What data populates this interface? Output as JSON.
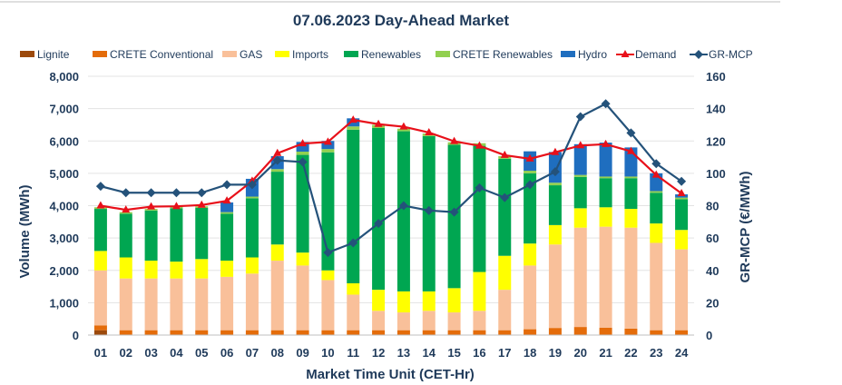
{
  "chart_data": {
    "type": "bar",
    "title": "07.06.2023  Day-Ahead Market",
    "xlabel": "Market Time Unit (CET-Hr)",
    "ylabel": "Volume (MWh)",
    "y2label": "GR-MCP (€/MWh)",
    "ylim": [
      0,
      8000
    ],
    "y2lim": [
      0,
      160
    ],
    "yticks": [
      "0",
      "1,000",
      "2,000",
      "3,000",
      "4,000",
      "5,000",
      "6,000",
      "7,000",
      "8,000"
    ],
    "y2ticks": [
      "0",
      "20",
      "40",
      "60",
      "80",
      "100",
      "120",
      "140",
      "160"
    ],
    "categories": [
      "01",
      "02",
      "03",
      "04",
      "05",
      "06",
      "07",
      "08",
      "09",
      "10",
      "11",
      "12",
      "13",
      "14",
      "15",
      "16",
      "17",
      "18",
      "19",
      "20",
      "21",
      "22",
      "23",
      "24"
    ],
    "legend": [
      "Lignite",
      "CRETE Conventional",
      "GAS",
      "Imports",
      "Renewables",
      "CRETE Renewables",
      "Hydro",
      "Demand",
      "GR-MCP"
    ],
    "series": [
      {
        "name": "Lignite",
        "kind": "bar",
        "color": "#9c4a0c",
        "values": [
          150,
          0,
          0,
          0,
          0,
          0,
          0,
          0,
          0,
          0,
          0,
          0,
          0,
          0,
          0,
          0,
          0,
          0,
          0,
          0,
          0,
          0,
          0,
          0
        ]
      },
      {
        "name": "CRETE Conventional",
        "kind": "bar",
        "color": "#e46c0a",
        "values": [
          150,
          150,
          150,
          150,
          150,
          150,
          150,
          150,
          150,
          150,
          150,
          150,
          150,
          150,
          150,
          150,
          150,
          180,
          220,
          250,
          230,
          200,
          150,
          150
        ]
      },
      {
        "name": "GAS",
        "kind": "bar",
        "color": "#f9c09a",
        "values": [
          1700,
          1600,
          1600,
          1600,
          1600,
          1650,
          1750,
          2150,
          2000,
          1550,
          1100,
          600,
          550,
          600,
          550,
          600,
          1250,
          1970,
          2580,
          3070,
          3120,
          3120,
          2700,
          2500
        ]
      },
      {
        "name": "Imports",
        "kind": "bar",
        "color": "#ffff00",
        "values": [
          600,
          650,
          550,
          520,
          600,
          500,
          500,
          500,
          400,
          300,
          350,
          650,
          650,
          600,
          750,
          1200,
          1050,
          680,
          600,
          600,
          600,
          580,
          600,
          600
        ]
      },
      {
        "name": "Renewables",
        "kind": "bar",
        "color": "#00a651",
        "values": [
          1300,
          1350,
          1550,
          1650,
          1580,
          1450,
          1830,
          2250,
          3020,
          3650,
          4750,
          5000,
          4950,
          4800,
          4430,
          3900,
          3000,
          2170,
          1230,
          970,
          900,
          950,
          950,
          950
        ]
      },
      {
        "name": "CRETE Renewables",
        "kind": "bar",
        "color": "#92d050",
        "values": [
          50,
          50,
          50,
          50,
          50,
          50,
          50,
          80,
          100,
          100,
          100,
          100,
          80,
          80,
          80,
          80,
          80,
          80,
          80,
          60,
          50,
          50,
          50,
          50
        ]
      },
      {
        "name": "Hydro",
        "kind": "bar",
        "color": "#1f6ebf",
        "values": [
          0,
          0,
          0,
          0,
          0,
          300,
          550,
          400,
          300,
          250,
          250,
          0,
          0,
          0,
          0,
          0,
          0,
          600,
          950,
          950,
          1050,
          900,
          550,
          100
        ]
      },
      {
        "name": "Demand",
        "kind": "line",
        "axis": "left",
        "color": "#e8101a",
        "values": [
          4000,
          3870,
          3970,
          3980,
          4020,
          4150,
          4760,
          5620,
          5920,
          5970,
          6650,
          6520,
          6440,
          6260,
          5990,
          5850,
          5560,
          5450,
          5650,
          5860,
          5900,
          5680,
          4950,
          4380
        ]
      },
      {
        "name": "GR-MCP",
        "kind": "line",
        "axis": "right",
        "color": "#24527a",
        "values": [
          92,
          88,
          88,
          88,
          88,
          93,
          93,
          108,
          107,
          51,
          57,
          69,
          80,
          77,
          76,
          91,
          85,
          93,
          101,
          135,
          143,
          125,
          106,
          95
        ]
      }
    ]
  }
}
